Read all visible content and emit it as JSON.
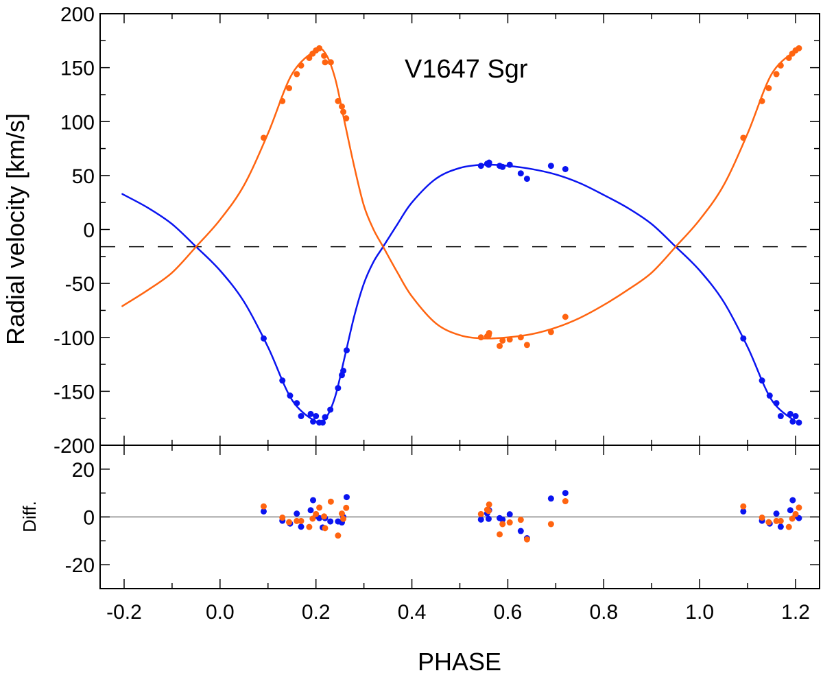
{
  "chart_data": {
    "type": "scatter",
    "title": "V1647 Sgr",
    "xlabel": "PHASE",
    "ylabel": "Radial velocity [km/s]",
    "residual_ylabel": "Diff.",
    "xlim": [
      -0.25,
      1.25
    ],
    "ylim": [
      -200,
      200
    ],
    "residual_ylim": [
      -30,
      30
    ],
    "x_ticks": [
      -0.2,
      0.0,
      0.2,
      0.4,
      0.6,
      0.8,
      1.0,
      1.2
    ],
    "x_tick_labels": [
      "-0.2",
      "0.0",
      "0.2",
      "0.4",
      "0.6",
      "0.8",
      "1.0",
      "1.2"
    ],
    "y_ticks": [
      200,
      150,
      100,
      50,
      0,
      -50,
      -100,
      -150,
      -200
    ],
    "y_tick_labels": [
      "200",
      "150",
      "100",
      "50",
      "0",
      "-50",
      "-100",
      "-150",
      "-200"
    ],
    "residual_y_ticks": [
      20,
      0,
      -20
    ],
    "residual_y_tick_labels": [
      "20",
      "0",
      "-20"
    ],
    "systemic_velocity": -16,
    "grid": false,
    "phase_repeat": true,
    "colors": {
      "primary": "#0a14f0",
      "secondary": "#ff6410",
      "gamma_line": "#000000",
      "zero_line": "#808080"
    },
    "series": [
      {
        "color": "#0a14f0",
        "phase": [
          0.091,
          0.13,
          0.146,
          0.16,
          0.169,
          0.189,
          0.194,
          0.2,
          0.207,
          0.214,
          0.219,
          0.23,
          0.246,
          0.254,
          0.257,
          0.264,
          0.544,
          0.557,
          0.56,
          0.561,
          0.583,
          0.589,
          0.604,
          0.627,
          0.64,
          0.69,
          0.72
        ],
        "rv": [
          -101,
          -140,
          -154,
          -161,
          -173,
          -171,
          -178,
          -173,
          -179,
          -179,
          -174,
          -167,
          -147,
          -135,
          -131,
          -112,
          59,
          61,
          60,
          62,
          59,
          58,
          60,
          52,
          47,
          59,
          56
        ],
        "residual": [
          2.3,
          -1.6,
          -2.8,
          1.4,
          -4.1,
          2.8,
          7.0,
          0.5,
          -0.5,
          -4.4,
          -0.5,
          -1.9,
          -1.9,
          -2.3,
          0.0,
          8.3,
          -1.1,
          1.5,
          -0.8,
          2.8,
          -0.5,
          -1.1,
          1.1,
          -5.9,
          -8.9,
          7.7,
          10.0
        ],
        "model_phase": [
          0.0,
          0.05,
          0.1,
          0.15,
          0.2,
          0.22,
          0.24,
          0.26,
          0.28,
          0.3,
          0.32,
          0.34,
          0.37,
          0.4,
          0.45,
          0.5,
          0.55,
          0.6,
          0.65,
          0.7,
          0.75,
          0.8,
          0.85,
          0.9,
          0.95,
          1.0
        ],
        "model_rv": [
          -38,
          -67,
          -109,
          -158,
          -178,
          -175,
          -155,
          -118,
          -80,
          -50,
          -30,
          -16,
          5,
          25,
          47,
          57,
          60,
          59,
          56,
          51,
          43,
          32,
          20,
          5,
          -16,
          -38
        ]
      },
      {
        "color": "#ff6410",
        "phase": [
          0.091,
          0.13,
          0.144,
          0.16,
          0.169,
          0.186,
          0.193,
          0.2,
          0.207,
          0.217,
          0.219,
          0.231,
          0.246,
          0.254,
          0.257,
          0.263,
          0.544,
          0.557,
          0.56,
          0.561,
          0.583,
          0.589,
          0.604,
          0.627,
          0.64,
          0.69,
          0.72
        ],
        "rv": [
          85,
          119,
          131,
          144,
          152,
          159,
          163,
          166,
          168,
          161,
          155,
          155,
          119,
          114,
          109,
          103,
          -100,
          -99,
          -98,
          -96,
          -108,
          -103,
          -102,
          -100,
          -107,
          -95,
          -81
        ],
        "residual": [
          4.4,
          -0.3,
          -2.2,
          -1.7,
          -1.7,
          -4.2,
          -0.7,
          1.2,
          3.9,
          0.2,
          -4.7,
          6.4,
          -7.8,
          1.4,
          -0.8,
          3.8,
          1.2,
          3.0,
          2.5,
          5.2,
          -7.3,
          -3.0,
          -2.3,
          -1.2,
          -9.4,
          -3.0,
          6.6
        ],
        "model_phase": [
          0.0,
          0.05,
          0.1,
          0.15,
          0.2,
          0.22,
          0.24,
          0.26,
          0.28,
          0.3,
          0.32,
          0.34,
          0.37,
          0.4,
          0.45,
          0.5,
          0.55,
          0.6,
          0.65,
          0.7,
          0.75,
          0.8,
          0.85,
          0.9,
          0.95,
          1.0
        ],
        "model_rv": [
          9,
          41,
          89,
          144,
          166,
          163,
          140,
          99,
          58,
          22,
          0,
          -16,
          -40,
          -62,
          -87,
          -98,
          -101,
          -100,
          -97,
          -91,
          -82,
          -70,
          -56,
          -40,
          -16,
          9
        ]
      }
    ]
  }
}
